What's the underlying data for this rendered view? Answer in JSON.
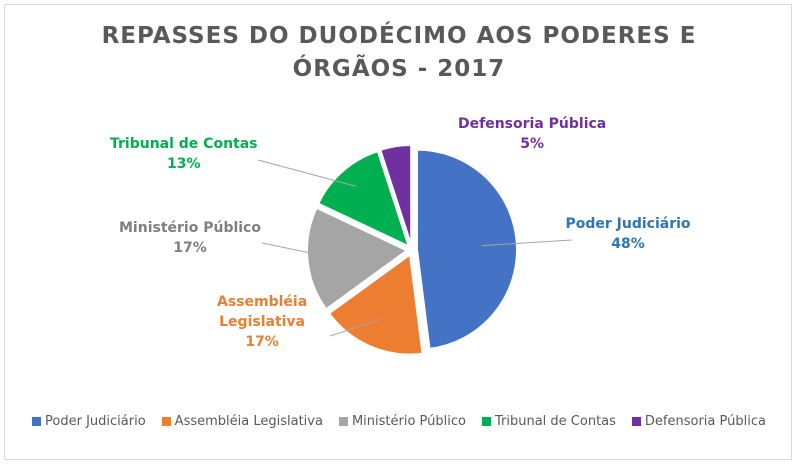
{
  "chart_data": {
    "type": "pie",
    "title_lines": [
      "REPASSES DO DUODÉCIMO AOS PODERES E",
      "ÓRGÃOS - 2017"
    ],
    "legend_position": "bottom",
    "slices": [
      {
        "name": "Poder Judiciário",
        "label_lines": [
          "Poder Judiciário"
        ],
        "value": 48,
        "pct_label": "48%",
        "color": "#4472c4",
        "label_color": "#2e75b6"
      },
      {
        "name": "Assembléia Legislativa",
        "label_lines": [
          "Assembléia",
          "Legislativa"
        ],
        "value": 17,
        "pct_label": "17%",
        "color": "#ed7d31",
        "label_color": "#ed7d31"
      },
      {
        "name": "Ministério Público",
        "label_lines": [
          "Ministério Público"
        ],
        "value": 17,
        "pct_label": "17%",
        "color": "#a5a5a5",
        "label_color": "#7f7f7f"
      },
      {
        "name": "Tribunal de Contas",
        "label_lines": [
          "Tribunal de Contas"
        ],
        "value": 13,
        "pct_label": "13%",
        "color": "#00b050",
        "label_color": "#00b050"
      },
      {
        "name": "Defensoria Pública",
        "label_lines": [
          "Defensoria Pública"
        ],
        "value": 5,
        "pct_label": "5%",
        "color": "#7030a0",
        "label_color": "#7030a0"
      }
    ]
  }
}
